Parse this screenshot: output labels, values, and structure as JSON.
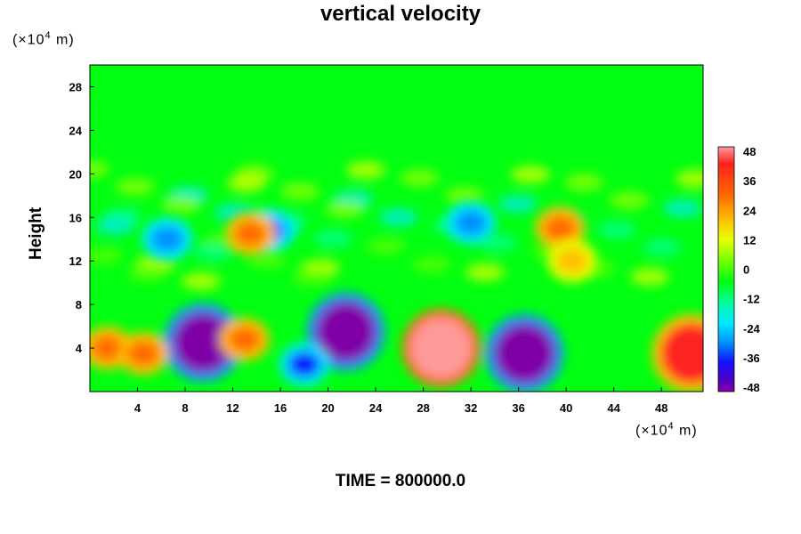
{
  "chart_data": {
    "type": "heatmap",
    "title": "vertical velocity",
    "xlabel": "",
    "ylabel": "Height",
    "x_unit": "(×10",
    "x_unit_exp": "4",
    "x_unit_tail": " m)",
    "y_unit": "(×10",
    "y_unit_exp": "4",
    "y_unit_tail": " m)",
    "xlim": [
      0,
      51.5
    ],
    "ylim": [
      0,
      30
    ],
    "xticks": [
      4,
      8,
      12,
      16,
      20,
      24,
      28,
      32,
      36,
      40,
      44,
      48
    ],
    "yticks": [
      4,
      8,
      12,
      16,
      20,
      24,
      28
    ],
    "colorbar": {
      "ticks": [
        48,
        36,
        24,
        12,
        0,
        -12,
        -24,
        -36,
        -48
      ],
      "range": [
        -48,
        48
      ]
    },
    "features": [
      {
        "x": 29.5,
        "y": 4.0,
        "value": 48
      },
      {
        "x": 9.5,
        "y": 4.5,
        "value": -48
      },
      {
        "x": 36.5,
        "y": 3.5,
        "value": -48
      },
      {
        "x": 21.5,
        "y": 5.5,
        "value": -44
      },
      {
        "x": 18.0,
        "y": 2.5,
        "value": -38
      },
      {
        "x": 1.5,
        "y": 4.0,
        "value": 34
      },
      {
        "x": 50.5,
        "y": 3.5,
        "value": 44
      },
      {
        "x": 4.5,
        "y": 3.5,
        "value": 30
      },
      {
        "x": 13.0,
        "y": 4.8,
        "value": 28
      },
      {
        "x": 15.0,
        "y": 14.8,
        "value": -36
      },
      {
        "x": 13.5,
        "y": 14.5,
        "value": 30
      },
      {
        "x": 6.5,
        "y": 14.0,
        "value": -30
      },
      {
        "x": 39.5,
        "y": 15.0,
        "value": 30
      },
      {
        "x": 32.0,
        "y": 15.5,
        "value": -30
      },
      {
        "x": 40.5,
        "y": 12.0,
        "value": 24
      }
    ],
    "time_label": "TIME = 800000.0"
  }
}
